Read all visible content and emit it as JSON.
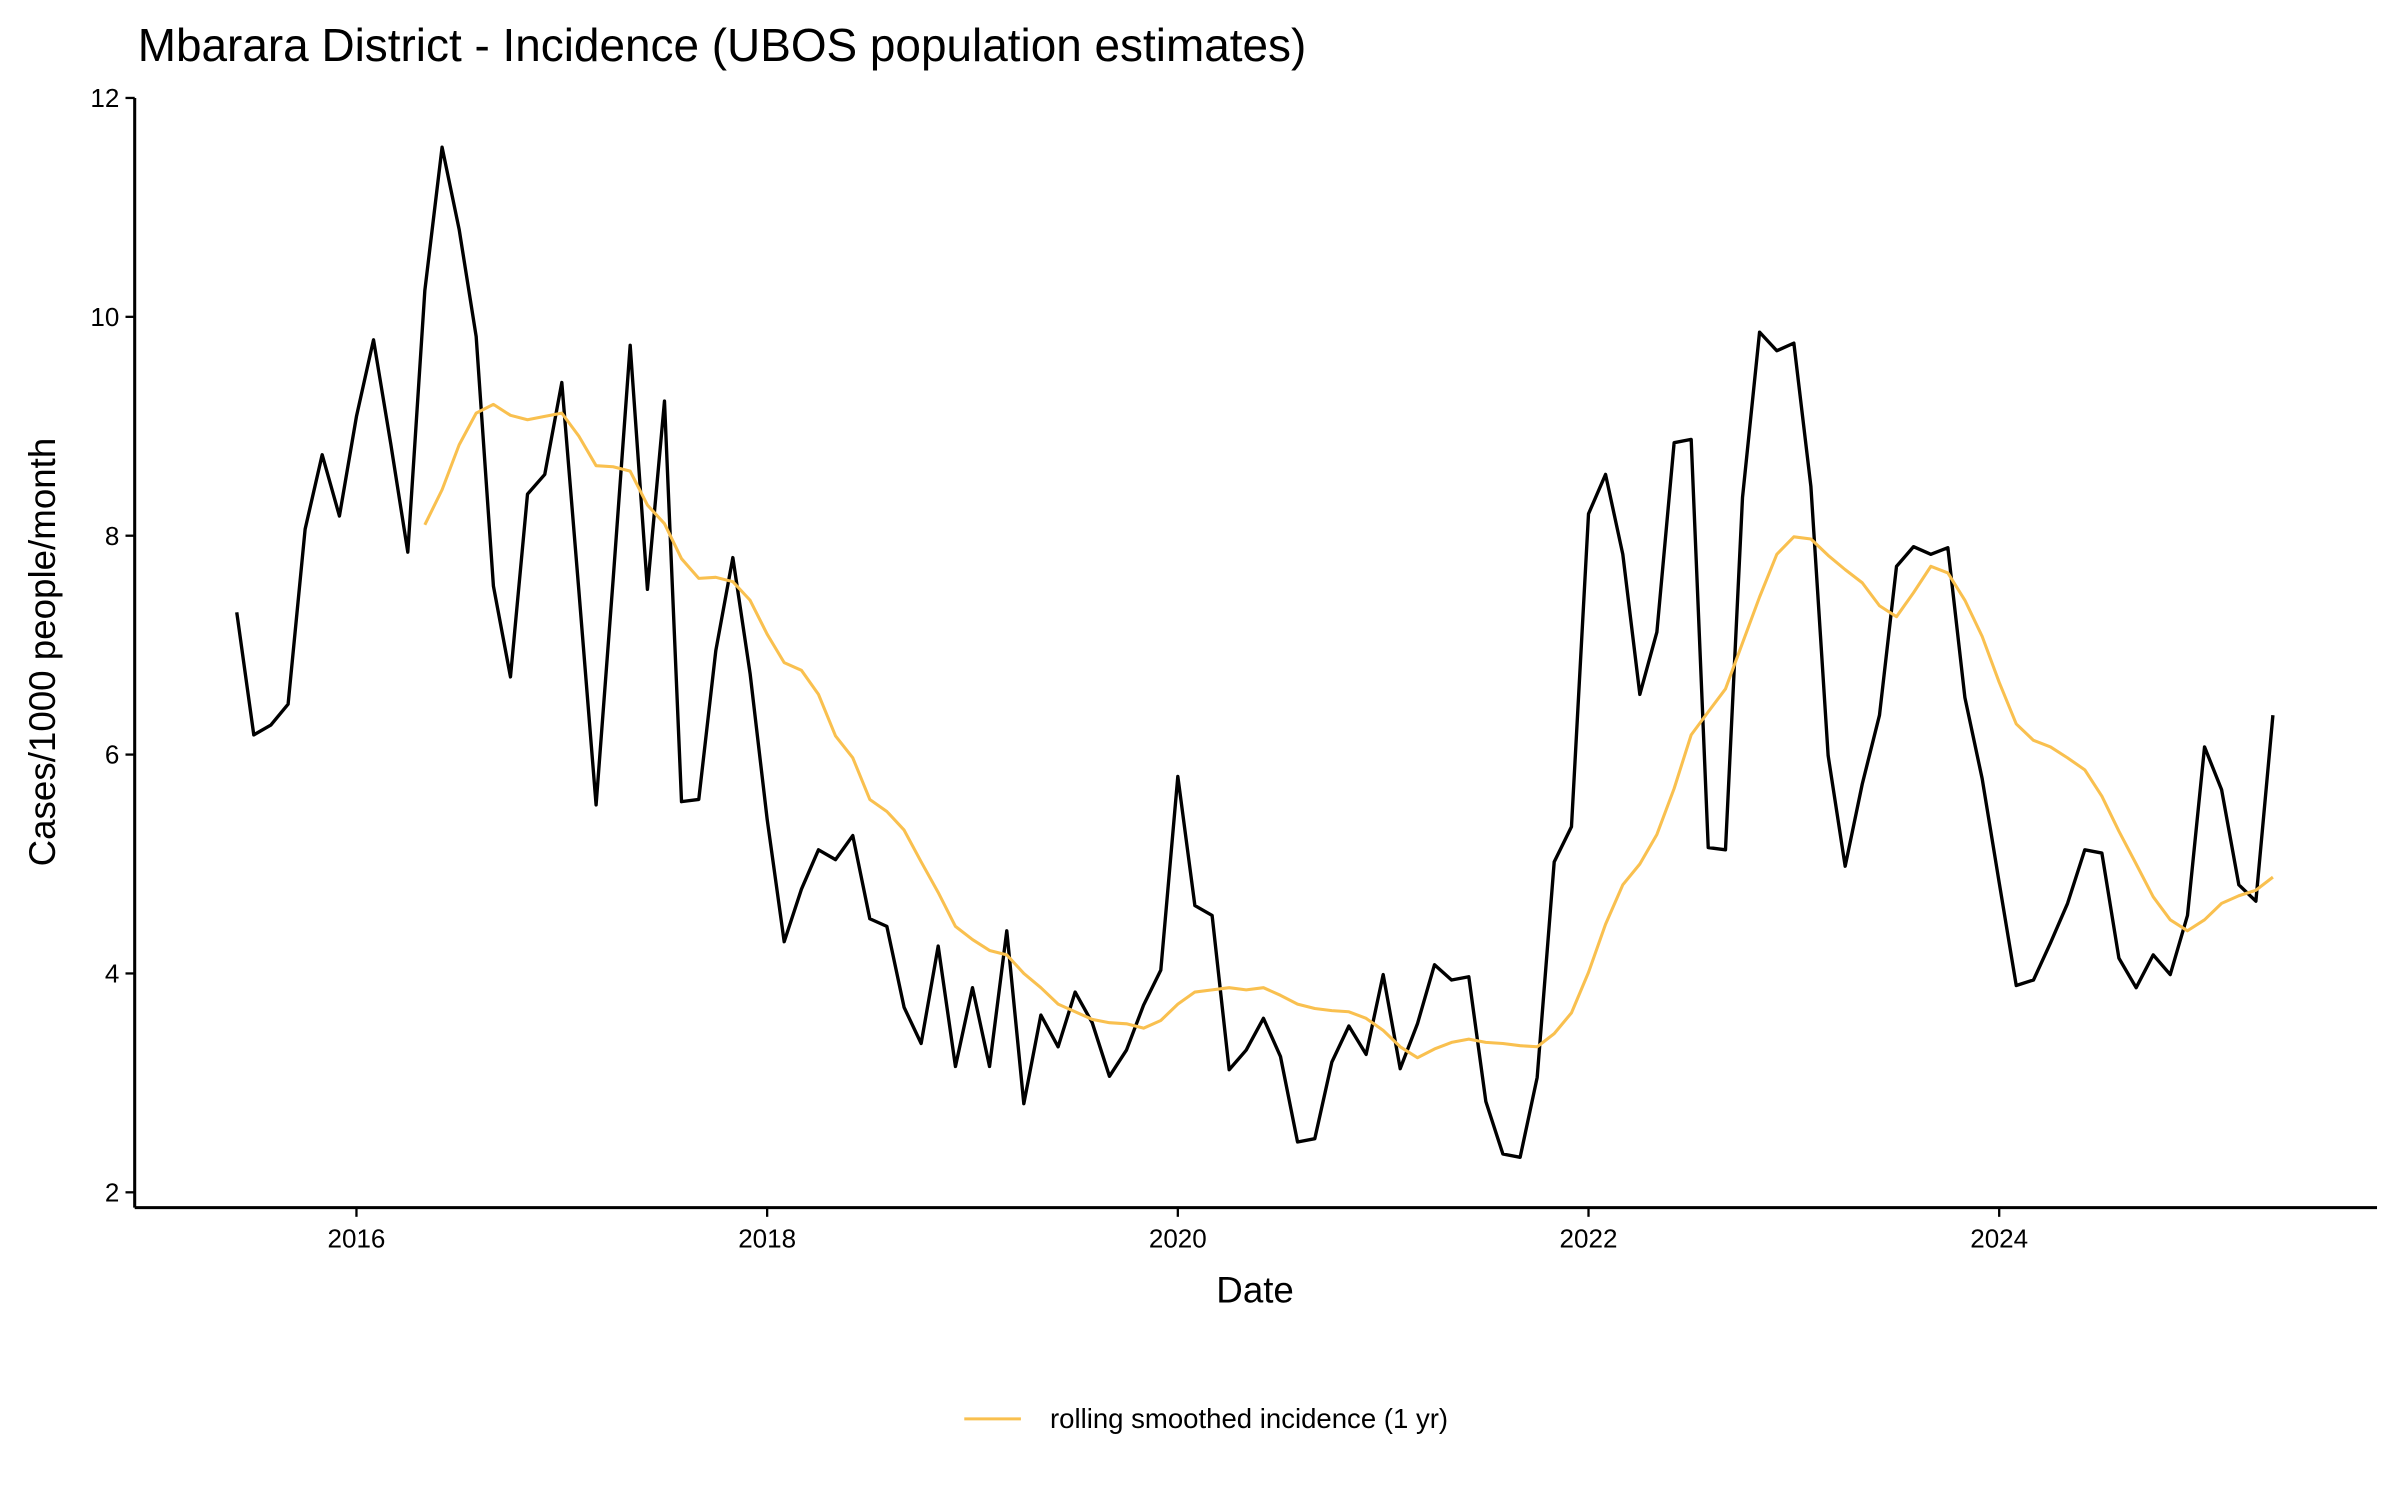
{
  "chart_data": {
    "type": "line",
    "title": "Mbarara District - Incidence (UBOS population estimates)",
    "x_label": "Date",
    "y_label": "Cases/1000 people/month",
    "x": [
      2015.417,
      2015.5,
      2015.583,
      2015.667,
      2015.75,
      2015.833,
      2015.917,
      2016,
      2016.083,
      2016.167,
      2016.25,
      2016.333,
      2016.417,
      2016.5,
      2016.583,
      2016.667,
      2016.75,
      2016.833,
      2016.917,
      2017,
      2017.083,
      2017.167,
      2017.25,
      2017.333,
      2017.417,
      2017.5,
      2017.583,
      2017.667,
      2017.75,
      2017.833,
      2017.917,
      2018,
      2018.083,
      2018.167,
      2018.25,
      2018.333,
      2018.417,
      2018.5,
      2018.583,
      2018.667,
      2018.75,
      2018.833,
      2018.917,
      2019,
      2019.083,
      2019.167,
      2019.25,
      2019.333,
      2019.417,
      2019.5,
      2019.583,
      2019.667,
      2019.75,
      2019.833,
      2019.917,
      2020,
      2020.083,
      2020.167,
      2020.25,
      2020.333,
      2020.417,
      2020.5,
      2020.583,
      2020.667,
      2020.75,
      2020.833,
      2020.917,
      2021,
      2021.083,
      2021.167,
      2021.25,
      2021.333,
      2021.417,
      2021.5,
      2021.583,
      2021.667,
      2021.75,
      2021.833,
      2021.917,
      2022,
      2022.083,
      2022.167,
      2022.25,
      2022.333,
      2022.417,
      2022.5,
      2022.583,
      2022.667,
      2022.75,
      2022.833,
      2022.917,
      2023,
      2023.083,
      2023.167,
      2023.25,
      2023.333,
      2023.417,
      2023.5,
      2023.583,
      2023.667,
      2023.75,
      2023.833,
      2023.917,
      2024,
      2024.083,
      2024.167,
      2024.25,
      2024.333,
      2024.417,
      2024.5,
      2024.583,
      2024.667,
      2024.75,
      2024.833,
      2024.917,
      2025,
      2025.083,
      2025.167,
      2025.25,
      2025.333
    ],
    "series": [
      {
        "color": "#000000",
        "values": [
          7.3,
          6.18,
          6.27,
          6.46,
          8.06,
          8.74,
          8.18,
          9.09,
          9.79,
          8.84,
          7.85,
          10.24,
          11.55,
          10.8,
          9.82,
          7.54,
          6.71,
          8.38,
          8.56,
          9.4,
          7.5,
          5.54,
          7.6,
          9.74,
          7.51,
          9.23,
          5.57,
          5.59,
          6.95,
          7.8,
          6.74,
          5.41,
          4.29,
          4.77,
          5.13,
          5.04,
          5.26,
          4.5,
          4.43,
          3.69,
          3.36,
          4.25,
          3.15,
          3.87,
          3.15,
          4.39,
          2.81,
          3.62,
          3.33,
          3.83,
          3.55,
          3.06,
          3.3,
          3.71,
          4.03,
          5.8,
          4.62,
          4.53,
          3.12,
          3.3,
          3.59,
          3.24,
          2.46,
          2.49,
          3.19,
          3.52,
          3.26,
          3.99,
          3.13,
          3.54,
          4.08,
          3.94,
          3.97,
          2.83,
          2.35,
          2.32,
          3.05,
          5.02,
          5.34,
          8.2,
          8.56,
          7.83,
          6.55,
          7.12,
          8.85,
          8.88,
          5.15,
          5.13,
          8.35,
          9.86,
          9.69,
          9.76,
          8.45,
          5.99,
          4.98,
          5.73,
          6.36,
          7.72,
          7.9,
          7.83,
          7.89,
          6.52,
          5.78,
          4.83,
          3.89,
          3.94,
          4.28,
          4.64,
          5.13,
          5.1,
          4.14,
          3.87,
          4.17,
          3.99,
          4.53,
          6.07,
          5.68,
          4.81,
          4.66,
          6.36
        ]
      },
      {
        "name": "rolling smoothed incidence (1 yr)",
        "color": "#f9c04f",
        "values": [
          null,
          null,
          null,
          null,
          null,
          null,
          null,
          null,
          null,
          null,
          null,
          8.1,
          8.42,
          8.83,
          9.12,
          9.2,
          9.1,
          9.06,
          9.09,
          9.12,
          8.91,
          8.64,
          8.63,
          8.59,
          8.28,
          8.11,
          7.79,
          7.61,
          7.62,
          7.58,
          7.41,
          7.1,
          6.84,
          6.77,
          6.55,
          6.17,
          5.97,
          5.59,
          5.48,
          5.31,
          5.02,
          4.74,
          4.43,
          4.31,
          4.21,
          4.17,
          4.0,
          3.87,
          3.72,
          3.65,
          3.58,
          3.55,
          3.54,
          3.5,
          3.57,
          3.72,
          3.83,
          3.85,
          3.87,
          3.85,
          3.87,
          3.8,
          3.72,
          3.68,
          3.66,
          3.65,
          3.59,
          3.48,
          3.33,
          3.23,
          3.31,
          3.37,
          3.4,
          3.37,
          3.36,
          3.34,
          3.33,
          3.45,
          3.64,
          4.01,
          4.45,
          4.81,
          5.0,
          5.27,
          5.69,
          6.18,
          6.39,
          6.6,
          7.02,
          7.44,
          7.83,
          7.99,
          7.97,
          7.82,
          7.69,
          7.57,
          7.36,
          7.26,
          7.48,
          7.72,
          7.66,
          7.41,
          7.08,
          6.66,
          6.28,
          6.13,
          6.07,
          5.97,
          5.86,
          5.62,
          5.3,
          5.0,
          4.7,
          4.49,
          4.39,
          4.49,
          4.64,
          4.71,
          4.76,
          4.88
        ]
      }
    ],
    "xlim": [
      2014.92,
      2025.84
    ],
    "xticks": [
      2016,
      2018,
      2020,
      2022,
      2024
    ],
    "ylim": [
      1.86,
      12
    ],
    "yticks": [
      2,
      4,
      6,
      8,
      10,
      12
    ],
    "grid": false,
    "legend": "bottom"
  }
}
